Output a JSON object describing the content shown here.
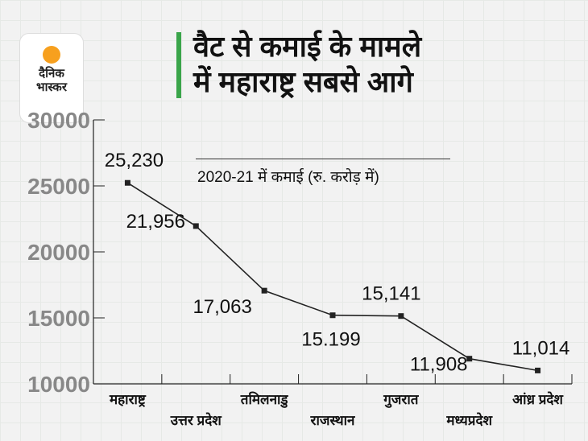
{
  "logo": {
    "line1": "दैनिक",
    "line2": "भास्कर"
  },
  "header": {
    "title_line1": "वैट से कमाई के मामले",
    "title_line2": "में महाराष्ट्र सबसे आगे",
    "subtitle": "2020-21 में कमाई (रु. करोड़ में)"
  },
  "colors": {
    "accent": "#3aa54a",
    "sun": "#f7a01e",
    "axis_tick": "#888888"
  },
  "chart_data": {
    "type": "line",
    "title": "वैट से कमाई के मामले में महाराष्ट्र सबसे आगे",
    "subtitle": "2020-21 में कमाई (रु. करोड़ में)",
    "xlabel": "",
    "ylabel": "",
    "categories": [
      "महाराष्ट्र",
      "उत्तर प्रदेश",
      "तमिलनाडु",
      "राजस्थान",
      "गुजरात",
      "मध्यप्रदेश",
      "आंध्र प्रदेश"
    ],
    "values": [
      25230,
      21956,
      17063,
      15199,
      15141,
      11908,
      11014
    ],
    "data_labels": [
      "25,230",
      "21,956",
      "17,063",
      "15.199",
      "15,141",
      "11,908",
      "11,014"
    ],
    "ylim": [
      10000,
      30000
    ],
    "yticks": [
      "10000",
      "15000",
      "20000",
      "25000",
      "30000"
    ],
    "grid": false
  }
}
